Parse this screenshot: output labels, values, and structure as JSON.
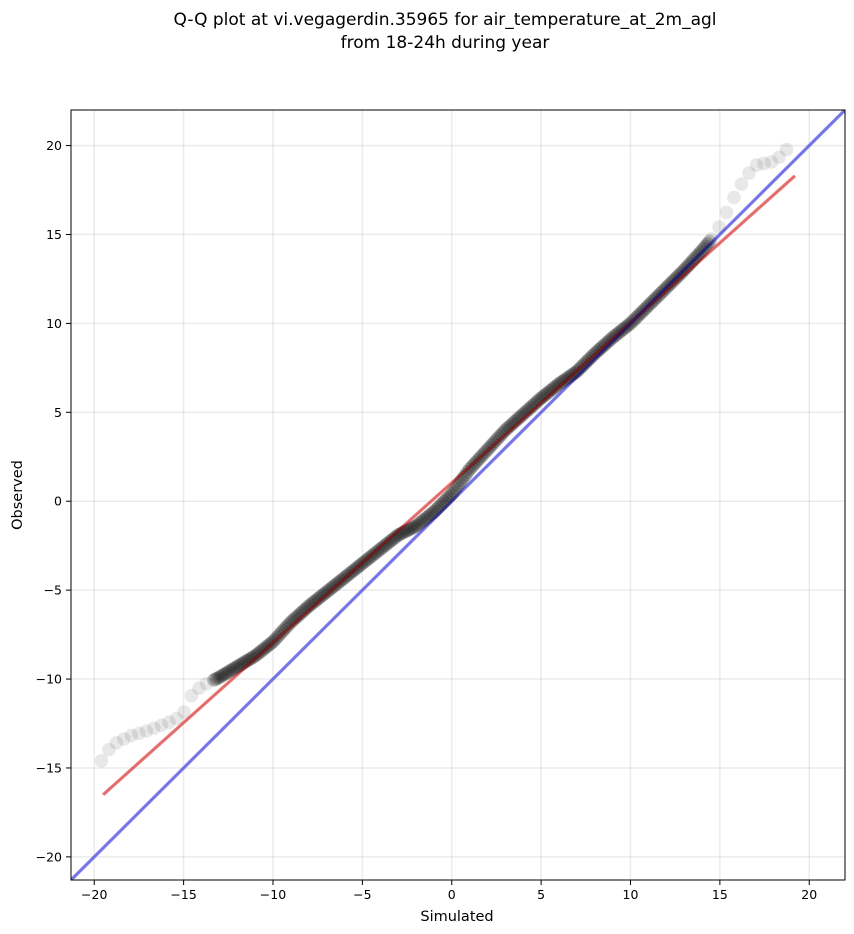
{
  "chart_data": {
    "type": "scatter",
    "title": [
      "Q-Q plot at vi.vegagerdin.35965 for air_temperature_at_2m_agl",
      "from 18-24h during year"
    ],
    "xlabel": "Simulated",
    "ylabel": "Observed",
    "xlim": [
      -21.3,
      22.0
    ],
    "ylim": [
      -21.3,
      22.0
    ],
    "xticks": [
      -20,
      -15,
      -10,
      -5,
      0,
      5,
      10,
      15,
      20
    ],
    "yticks": [
      -20,
      -15,
      -10,
      -5,
      0,
      5,
      10,
      15,
      20
    ],
    "xtick_labels": [
      "−20",
      "−15",
      "−10",
      "−5",
      "0",
      "5",
      "10",
      "15",
      "20"
    ],
    "ytick_labels": [
      "−20",
      "−15",
      "−10",
      "−5",
      "0",
      "5",
      "10",
      "15",
      "20"
    ],
    "grid": true,
    "colors": {
      "points": "#000000",
      "fit_line": "#f08080",
      "identity_line": "#8080f0"
    },
    "quantile_curve": {
      "x": [
        -19.6,
        -19.0,
        -18.0,
        -17.0,
        -16.0,
        -15.5,
        -15.0,
        -14.5,
        -14.0,
        -13.0,
        -12.0,
        -11.0,
        -10.0,
        -9.0,
        -8.0,
        -7.0,
        -6.0,
        -5.0,
        -4.0,
        -3.0,
        -2.0,
        -1.0,
        0.0,
        1.0,
        2.0,
        3.0,
        4.0,
        5.0,
        6.0,
        7.0,
        8.0,
        9.0,
        10.0,
        11.0,
        12.0,
        13.0,
        14.0,
        14.5,
        15.0,
        15.5,
        16.0,
        16.5,
        17.0,
        17.5,
        18.0,
        18.5,
        19.0
      ],
      "y": [
        -14.6,
        -13.7,
        -13.2,
        -12.9,
        -12.5,
        -12.3,
        -11.9,
        -10.8,
        -10.4,
        -9.9,
        -9.3,
        -8.7,
        -7.9,
        -6.8,
        -5.9,
        -5.1,
        -4.3,
        -3.5,
        -2.7,
        -1.9,
        -1.4,
        -0.6,
        0.4,
        1.8,
        2.9,
        4.0,
        4.9,
        5.8,
        6.6,
        7.3,
        8.3,
        9.2,
        10.0,
        11.0,
        12.0,
        13.0,
        14.1,
        14.7,
        15.5,
        16.5,
        17.5,
        18.3,
        18.9,
        19.0,
        19.1,
        19.5,
        20.1
      ]
    },
    "fit_line": {
      "x": [
        -19.5,
        19.2
      ],
      "y": [
        -16.5,
        18.3
      ]
    },
    "identity_line": {
      "x": [
        -21.3,
        22.0
      ],
      "y": [
        -21.3,
        22.0
      ]
    }
  }
}
